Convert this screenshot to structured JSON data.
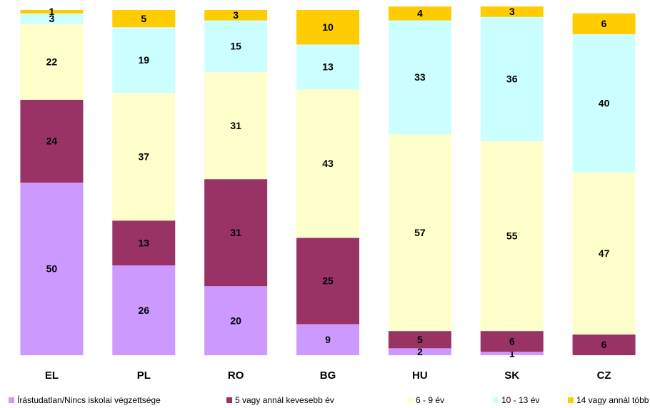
{
  "chart_data": {
    "type": "stacked_bar",
    "categories": [
      "EL",
      "PL",
      "RO",
      "BG",
      "HU",
      "SK",
      "CZ"
    ],
    "ylim": [
      0,
      100
    ],
    "series": [
      {
        "name": "Írástudatlan/Nincs iskolai végzettsége",
        "color": "#cc99ff",
        "values": [
          50,
          26,
          20,
          9,
          2,
          1,
          null
        ]
      },
      {
        "name": "5 vagy annál kevesebb év",
        "color": "#993366",
        "values": [
          24,
          13,
          31,
          25,
          5,
          6,
          6
        ]
      },
      {
        "name": "6 - 9 év",
        "color": "#ffffcc",
        "values": [
          22,
          37,
          31,
          43,
          57,
          55,
          47
        ]
      },
      {
        "name": "10 - 13 év",
        "color": "#ccffff",
        "values": [
          3,
          19,
          15,
          13,
          33,
          36,
          40
        ]
      },
      {
        "name": "14 vagy annál több év",
        "color": "#ffcc00",
        "values": [
          1,
          5,
          3,
          10,
          4,
          3,
          6
        ]
      }
    ]
  }
}
